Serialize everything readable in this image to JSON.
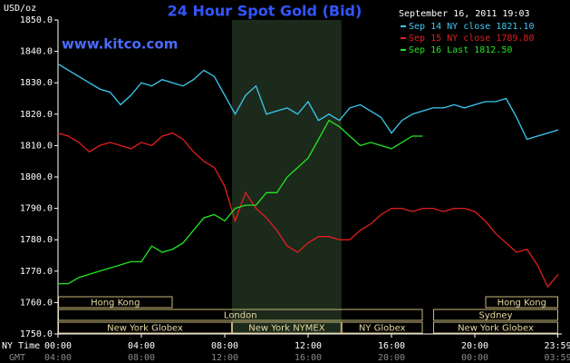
{
  "chart_data": {
    "type": "line",
    "title": "24 Hour Spot Gold (Bid)",
    "source": "www.kitco.com",
    "y_label": "USD/oz",
    "timestamp": "September 16, 2011 19:03",
    "x_row_label": "NY Time",
    "x2_row_label": "GMT",
    "x": [
      0,
      0.5,
      1,
      1.5,
      2,
      2.5,
      3,
      3.5,
      4,
      4.5,
      5,
      5.5,
      6,
      6.5,
      7,
      7.5,
      8,
      8.5,
      9,
      9.5,
      10,
      10.5,
      11,
      11.5,
      12,
      12.5,
      13,
      13.5,
      14,
      14.5,
      15,
      15.5,
      16,
      16.5,
      17,
      17.5,
      18,
      18.5,
      19,
      19.5,
      20,
      20.5,
      21,
      21.5,
      22,
      22.5,
      23,
      23.5,
      24
    ],
    "xlim": [
      0,
      24
    ],
    "xticks": [
      {
        "value": 0,
        "label": "00:00"
      },
      {
        "value": 4,
        "label": "04:00"
      },
      {
        "value": 8,
        "label": "08:00"
      },
      {
        "value": 12,
        "label": "12:00"
      },
      {
        "value": 16,
        "label": "16:00"
      },
      {
        "value": 20,
        "label": "20:00"
      },
      {
        "value": 23.98,
        "label": "23:59"
      }
    ],
    "x2ticks": [
      "04:00",
      "08:00",
      "12:00",
      "16:00",
      "20:00",
      "00:00",
      "03:59"
    ],
    "ylim": [
      1750,
      1850
    ],
    "yticks": [
      {
        "value": 1750,
        "label": "1750.0"
      },
      {
        "value": 1760,
        "label": "1760.0"
      },
      {
        "value": 1770,
        "label": "1770.0"
      },
      {
        "value": 1780,
        "label": "1780.0"
      },
      {
        "value": 1790,
        "label": "1790.0"
      },
      {
        "value": 1800,
        "label": "1800.0"
      },
      {
        "value": 1810,
        "label": "1810.0"
      },
      {
        "value": 1820,
        "label": "1820.0"
      },
      {
        "value": 1830,
        "label": "1830.0"
      },
      {
        "value": 1840,
        "label": "1840.0"
      },
      {
        "value": 1850,
        "label": "1850.0"
      }
    ],
    "series": [
      {
        "name": "Sep 14 NY close 1821.10",
        "color": "#3ccaf2",
        "values": [
          1836,
          1834,
          1832,
          1830,
          1828,
          1827,
          1823,
          1826,
          1830,
          1829,
          1831,
          1830,
          1829,
          1831,
          1834,
          1832,
          1826,
          1820,
          1826,
          1829,
          1820,
          1821,
          1822,
          1820,
          1824,
          1818,
          1820,
          1818,
          1822,
          1823,
          1821,
          1819,
          1814,
          1818,
          1820,
          1821,
          1822,
          1822,
          1823,
          1822,
          1823,
          1824,
          1824,
          1825,
          1819,
          1812,
          1813,
          1814,
          1815
        ]
      },
      {
        "name": "Sep 15 NY close 1789.80",
        "color": "#e41e1e",
        "values": [
          1814,
          1813,
          1811,
          1808,
          1810,
          1811,
          1810,
          1809,
          1811,
          1810,
          1813,
          1814,
          1812,
          1808,
          1805,
          1803,
          1797,
          1786,
          1795,
          1790,
          1787,
          1783,
          1778,
          1776,
          1779,
          1781,
          1781,
          1780,
          1780,
          1783,
          1785,
          1788,
          1790,
          1790,
          1789,
          1790,
          1790,
          1789,
          1790,
          1790,
          1789,
          1786,
          1782,
          1779,
          1776,
          1777,
          1772,
          1765,
          1769
        ]
      },
      {
        "name": "Sep 16 Last 1812.50",
        "color": "#22e622",
        "values": [
          1766,
          1766,
          1768,
          1769,
          1770,
          1771,
          1772,
          1773,
          1773,
          1778,
          1776,
          1777,
          1779,
          1783,
          1787,
          1788,
          1786,
          1790,
          1791,
          1791,
          1795,
          1795,
          1800,
          1803,
          1806,
          1812,
          1818,
          1816,
          1813,
          1810,
          1811,
          1810,
          1809,
          1811,
          1813,
          1813,
          null,
          null,
          null,
          null,
          null,
          null,
          null,
          null,
          null,
          null,
          null,
          null,
          null
        ]
      }
    ],
    "sessions": [
      {
        "label": "Hong Kong",
        "start": 0,
        "end": 5.5,
        "row": 1
      },
      {
        "label": "Hong Kong",
        "start": 20.5,
        "end": 24,
        "row": 1
      },
      {
        "label": "London",
        "start": 0,
        "end": 17.5,
        "row": 2
      },
      {
        "label": "Sydney",
        "start": 18,
        "end": 24,
        "row": 2
      },
      {
        "label": "New York Globex",
        "start": 0,
        "end": 8.35,
        "row": 3
      },
      {
        "label": "New York NYMEX",
        "start": 8.35,
        "end": 13.6,
        "row": 3
      },
      {
        "label": "NY Globex",
        "start": 13.6,
        "end": 17.5,
        "row": 3
      },
      {
        "label": "New York Globex",
        "start": 18,
        "end": 24,
        "row": 3
      }
    ],
    "highlight_session": 5,
    "grid": false
  }
}
